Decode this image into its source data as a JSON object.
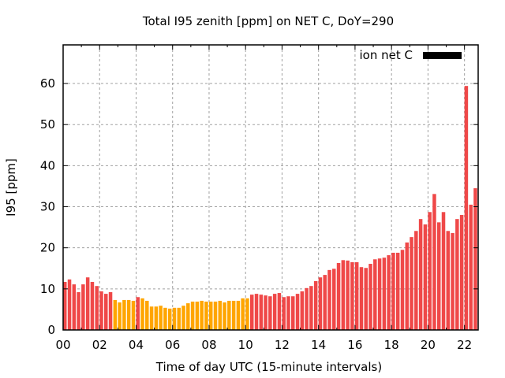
{
  "chart_data": {
    "type": "bar",
    "title": "Total I95 zenith [ppm] on NET C, DoY=290",
    "xlabel": "Time of day UTC (15-minute intervals)",
    "ylabel": "I95 [ppm]",
    "xlim": [
      0,
      22.75
    ],
    "ylim": [
      0,
      69.4
    ],
    "x_tick_values": [
      0,
      2,
      4,
      6,
      8,
      10,
      12,
      14,
      16,
      18,
      20,
      22
    ],
    "x_tick_labels": [
      "00",
      "02",
      "04",
      "06",
      "08",
      "10",
      "12",
      "14",
      "16",
      "18",
      "20",
      "22"
    ],
    "y_tick_values": [
      0,
      10,
      20,
      30,
      40,
      50,
      60
    ],
    "y_tick_labels": [
      "0",
      "10",
      "20",
      "30",
      "40",
      "50",
      "60"
    ],
    "grid": true,
    "legend": {
      "label": "ion net C",
      "position": "top-right",
      "color": "#000000"
    },
    "colors": {
      "high": "#EF4848",
      "low": "#FFA500"
    },
    "interval_hours": 0.25,
    "series": [
      {
        "name": "ion net C",
        "values": [
          11.7,
          12.3,
          11.1,
          9.2,
          11.1,
          12.8,
          11.7,
          10.7,
          9.4,
          8.8,
          9.2,
          7.3,
          6.7,
          7.3,
          7.3,
          7.1,
          8.0,
          7.7,
          7.1,
          5.7,
          5.7,
          5.9,
          5.4,
          5.2,
          5.4,
          5.4,
          5.9,
          6.5,
          6.9,
          6.9,
          7.1,
          6.9,
          6.9,
          6.9,
          7.1,
          6.7,
          7.1,
          7.1,
          7.1,
          7.7,
          7.7,
          8.6,
          8.8,
          8.6,
          8.4,
          8.2,
          8.8,
          9.0,
          8.0,
          8.2,
          8.2,
          8.8,
          9.4,
          10.2,
          10.7,
          11.9,
          12.8,
          13.4,
          14.6,
          14.9,
          16.3,
          17.0,
          16.9,
          16.5,
          16.5,
          15.3,
          15.1,
          16.1,
          17.2,
          17.4,
          17.6,
          18.2,
          18.8,
          18.8,
          19.5,
          21.3,
          22.6,
          24.1,
          27.0,
          25.7,
          28.7,
          33.1,
          26.2,
          28.7,
          24.1,
          23.6,
          27.0,
          28.0,
          59.4,
          30.5,
          34.5,
          36.8
        ],
        "categories": [
          "high",
          "high",
          "high",
          "high",
          "high",
          "high",
          "high",
          "high",
          "high",
          "high",
          "high",
          "low",
          "low",
          "low",
          "low",
          "low",
          "high",
          "low",
          "low",
          "low",
          "low",
          "low",
          "low",
          "low",
          "low",
          "low",
          "low",
          "low",
          "low",
          "low",
          "low",
          "low",
          "low",
          "low",
          "low",
          "low",
          "low",
          "low",
          "low",
          "low",
          "low",
          "high",
          "high",
          "high",
          "high",
          "high",
          "high",
          "high",
          "high",
          "high",
          "high",
          "high",
          "high",
          "high",
          "high",
          "high",
          "high",
          "high",
          "high",
          "high",
          "high",
          "high",
          "high",
          "high",
          "high",
          "high",
          "high",
          "high",
          "high",
          "high",
          "high",
          "high",
          "high",
          "high",
          "high",
          "high",
          "high",
          "high",
          "high",
          "high",
          "high",
          "high",
          "high",
          "high",
          "high",
          "high",
          "high",
          "high",
          "high",
          "high",
          "high",
          "high"
        ]
      }
    ]
  }
}
